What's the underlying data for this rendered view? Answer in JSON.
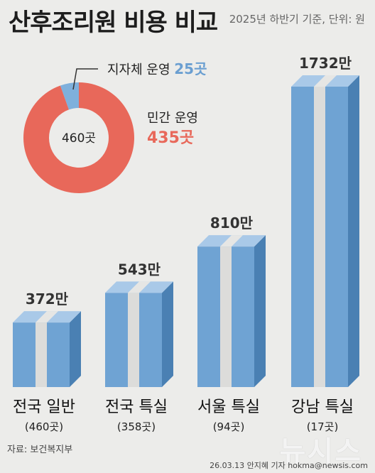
{
  "title": "산후조리원 비용 비교",
  "subtitle": "2025년 하반기 기준, 단위: 원",
  "source": "자료: 보건복지부",
  "credit": "26.03.13 안지혜 기자 hokma@newsis.com",
  "watermark": "뉴시스",
  "colors": {
    "bar_front": "#6fa3d3",
    "bar_side": "#4a80b3",
    "bar_top": "#a9c9e8",
    "stripe": "#dcdcda",
    "donut_private": "#e8685a",
    "donut_public": "#7fb0dc",
    "public_text": "#6b9fd1",
    "private_text": "#e8685a"
  },
  "chart_data": [
    {
      "type": "bar",
      "categories": [
        "전국 일반",
        "전국 특실",
        "서울 특실",
        "강남 특실"
      ],
      "category_counts": [
        "(460곳)",
        "(358곳)",
        "(94곳)",
        "(17곳)"
      ],
      "values": [
        372,
        543,
        810,
        1732
      ],
      "value_labels": [
        "372만",
        "543만",
        "810만",
        "1732만"
      ],
      "ylim": [
        0,
        1732
      ]
    },
    {
      "type": "pie",
      "center_label": "460곳",
      "slices": [
        {
          "label": "지자체 운영",
          "value": 25,
          "value_label": "25곳"
        },
        {
          "label": "민간 운영",
          "value": 435,
          "value_label": "435곳"
        }
      ]
    }
  ]
}
